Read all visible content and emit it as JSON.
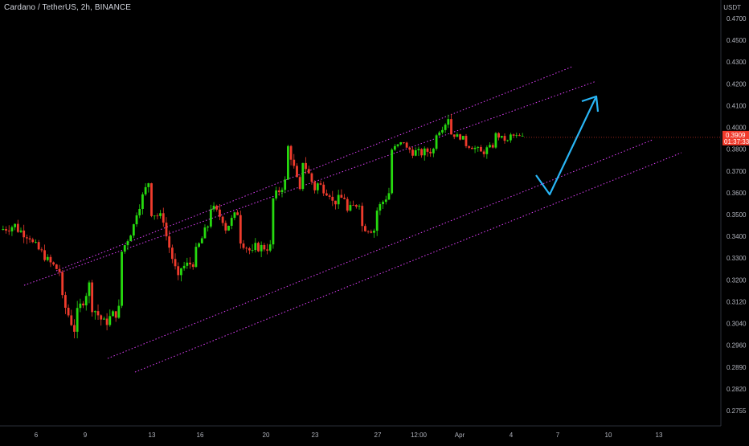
{
  "chart_data": {
    "type": "candlestick",
    "title": "Cardano / TetherUS, 2h, BINANCE",
    "unit": "USDT",
    "y_ticks": [
      "0.4700",
      "0.4500",
      "0.4300",
      "0.4200",
      "0.4100",
      "0.4000",
      "0.3800",
      "0.3700",
      "0.3600",
      "0.3500",
      "0.3400",
      "0.3300",
      "0.3200",
      "0.3120",
      "0.3040",
      "0.2960",
      "0.2890",
      "0.2820",
      "0.2755"
    ],
    "x_ticks": [
      "6",
      "9",
      "13",
      "16",
      "20",
      "23",
      "27",
      "12:00",
      "Apr",
      "4",
      "7",
      "10",
      "13"
    ],
    "last_price": "0.3909",
    "countdown": "01:37:33",
    "price_path": [
      [
        0.343,
        0.345
      ],
      [
        0.344,
        0.34
      ],
      [
        0.338,
        0.331
      ],
      [
        0.33,
        0.324
      ],
      [
        0.315,
        0.302
      ],
      [
        0.305,
        0.318
      ],
      [
        0.312,
        0.304
      ],
      [
        0.304,
        0.309
      ],
      [
        0.33,
        0.345
      ],
      [
        0.348,
        0.365
      ],
      [
        0.352,
        0.348
      ],
      [
        0.345,
        0.32
      ],
      [
        0.325,
        0.328
      ],
      [
        0.33,
        0.345
      ],
      [
        0.355,
        0.348
      ],
      [
        0.342,
        0.351
      ],
      [
        0.34,
        0.332
      ],
      [
        0.335,
        0.335
      ],
      [
        0.355,
        0.365
      ],
      [
        0.388,
        0.36
      ],
      [
        0.378,
        0.362
      ],
      [
        0.365,
        0.36
      ],
      [
        0.355,
        0.358
      ],
      [
        0.35,
        0.356
      ],
      [
        0.345,
        0.343
      ],
      [
        0.35,
        0.36
      ],
      [
        0.378,
        0.387
      ],
      [
        0.381,
        0.378
      ],
      [
        0.378,
        0.38
      ],
      [
        0.392,
        0.405
      ],
      [
        0.395,
        0.39
      ],
      [
        0.385,
        0.38
      ],
      [
        0.377,
        0.383
      ],
      [
        0.395,
        0.387
      ],
      [
        0.393,
        0.3909
      ]
    ],
    "channel_lines_color": "#e040fb",
    "projection": {
      "color": "#29b6f6",
      "points": [
        {
          "date_index": 35.3,
          "price": 0.387
        },
        {
          "date_index": 36.2,
          "price": 0.376
        },
        {
          "date_index": 39.4,
          "price": 0.435
        }
      ]
    },
    "up_color": "#26d90f",
    "down_color": "#ef3b2c"
  }
}
